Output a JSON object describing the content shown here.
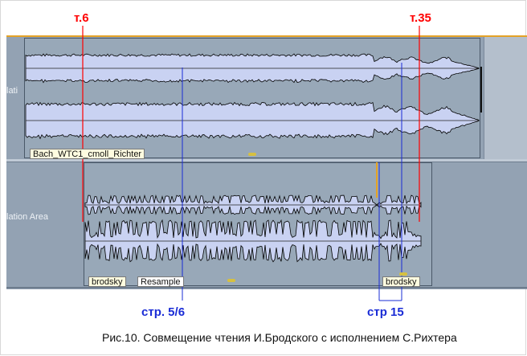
{
  "markers": {
    "left": "т.6",
    "right": "т.35"
  },
  "tracks": {
    "top": {
      "header_label": "lati",
      "clip_label": "Bach_WTC1_cmoll_Richter"
    },
    "bottom": {
      "header_label": "lation Area",
      "clip_label": "brodsky",
      "resample_label": "Resample",
      "clip2_label": "brodsky"
    }
  },
  "annotations": {
    "page_left": "стр. 5/6",
    "page_right": "стр 15"
  },
  "caption": "Рис.10. Совмещение чтения И.Бродского с исполнением С.Рихтера",
  "colors": {
    "accent_marker": "#ff0000",
    "accent_annotation": "#1a2cd6",
    "waveform_fill": "#c9d2f2",
    "waveform_edge": "#000000",
    "track_background": "#93a2b3"
  }
}
